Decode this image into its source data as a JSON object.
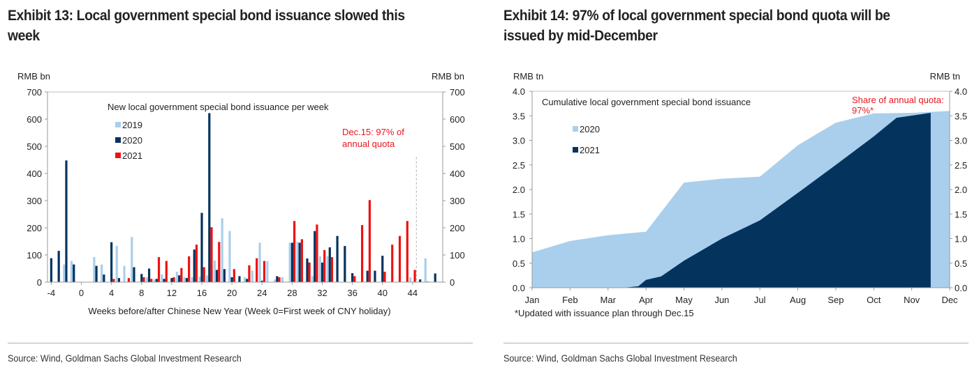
{
  "exhibit13": {
    "title": "Exhibit 13: Local government special bond issuance slowed this week",
    "title_line1": "Exhibit 13: Local government special bond issuance slowed this",
    "title_line2": "week",
    "source": "Source: Wind, Goldman Sachs Global Investment Research"
  },
  "exhibit14": {
    "title": "Exhibit 14: 97% of local government special bond quota will be issued by mid-December",
    "title_line1": "Exhibit 14: 97% of local government special bond quota will be",
    "title_line2": "issued by mid-December",
    "source": "Source: Wind, Goldman Sachs Global Investment Research"
  },
  "chart_data": [
    {
      "type": "bar",
      "title": "New local government special bond issuance per week",
      "xlabel": "Weeks before/after Chinese New Year (Week 0=First week of CNY holiday)",
      "ylabel_left": "RMB bn",
      "ylabel_right": "RMB bn",
      "ylim": [
        0,
        700
      ],
      "yticks": [
        0,
        100,
        200,
        300,
        400,
        500,
        600,
        700
      ],
      "xticks": [
        -4,
        0,
        4,
        8,
        12,
        16,
        20,
        24,
        28,
        32,
        36,
        40,
        44
      ],
      "xlim": [
        -4.5,
        48
      ],
      "legend_position": "top-left",
      "annotation": {
        "text_line1": "Dec.15: 97% of",
        "text_line2": "annual quota",
        "color": "#e8141c",
        "week": 44.5
      },
      "colors": {
        "2019": "#a9cfec",
        "2020": "#04335e",
        "2021": "#ee1111"
      },
      "x": [
        -4,
        -3,
        -2,
        -1,
        0,
        1,
        2,
        3,
        4,
        5,
        6,
        7,
        8,
        9,
        10,
        11,
        12,
        13,
        14,
        15,
        16,
        17,
        18,
        19,
        20,
        21,
        22,
        23,
        24,
        25,
        26,
        27,
        28,
        29,
        30,
        31,
        32,
        33,
        34,
        35,
        36,
        37,
        38,
        39,
        40,
        41,
        42,
        43,
        44,
        45,
        46,
        47
      ],
      "series": [
        {
          "name": "2019",
          "values": [
            0,
            0,
            65,
            78,
            0,
            0,
            92,
            65,
            0,
            133,
            60,
            166,
            0,
            18,
            10,
            28,
            0,
            38,
            18,
            18,
            20,
            25,
            80,
            235,
            188,
            0,
            18,
            42,
            145,
            78,
            10,
            18,
            145,
            148,
            0,
            22,
            95,
            96,
            0,
            0,
            0,
            0,
            0,
            0,
            0,
            0,
            0,
            0,
            18,
            0,
            88,
            0
          ]
        },
        {
          "name": "2020",
          "values": [
            88,
            115,
            448,
            65,
            0,
            0,
            60,
            28,
            147,
            15,
            0,
            55,
            30,
            50,
            12,
            12,
            15,
            25,
            15,
            120,
            255,
            622,
            45,
            48,
            18,
            22,
            12,
            0,
            5,
            0,
            22,
            0,
            145,
            145,
            87,
            188,
            72,
            128,
            170,
            133,
            33,
            0,
            42,
            42,
            97,
            0,
            0,
            0,
            0,
            10,
            2,
            32
          ]
        },
        {
          "name": "2021",
          "values": [
            0,
            0,
            0,
            0,
            0,
            0,
            0,
            0,
            12,
            0,
            15,
            0,
            18,
            12,
            92,
            78,
            18,
            52,
            95,
            138,
            55,
            202,
            148,
            0,
            48,
            0,
            62,
            88,
            78,
            0,
            18,
            0,
            225,
            158,
            72,
            212,
            118,
            92,
            0,
            0,
            22,
            210,
            302,
            0,
            38,
            138,
            170,
            225,
            45,
            0,
            0,
            0
          ]
        }
      ]
    },
    {
      "type": "area",
      "title": "Cumulative local government special bond issuance",
      "ylabel_left": "RMB tn",
      "ylabel_right": "RMB tn",
      "ylim": [
        0,
        4.0
      ],
      "yticks": [
        "0.0",
        "0.5",
        "1.0",
        "1.5",
        "2.0",
        "2.5",
        "3.0",
        "3.5",
        "4.0"
      ],
      "categories": [
        "Jan",
        "Feb",
        "Mar",
        "Apr",
        "May",
        "Jun",
        "Jul",
        "Aug",
        "Sep",
        "Oct",
        "Nov",
        "Dec"
      ],
      "legend_position": "top-left",
      "annotation": {
        "text_line1": "Share of annual quota:",
        "text_line2": "97%*",
        "color": "#e8141c"
      },
      "footnote": "*Updated with issuance plan through Dec.15",
      "colors": {
        "2020": "#a9cfec",
        "2021": "#04335e"
      },
      "series": [
        {
          "name": "2020",
          "x": [
            0,
            1,
            2,
            3,
            4,
            5,
            6,
            7,
            8,
            9,
            10,
            11
          ],
          "values": [
            0.72,
            0.95,
            1.07,
            1.14,
            2.14,
            2.22,
            2.26,
            2.9,
            3.36,
            3.55,
            3.56,
            3.6
          ]
        },
        {
          "name": "2021",
          "x": [
            0,
            1,
            2,
            2.4,
            2.8,
            3,
            3.4,
            4,
            5,
            6,
            7,
            8,
            9,
            9.6,
            10.5
          ],
          "values": [
            0,
            0,
            0,
            0,
            0.03,
            0.16,
            0.23,
            0.55,
            1.0,
            1.37,
            1.93,
            2.5,
            3.08,
            3.46,
            3.56
          ]
        }
      ]
    }
  ]
}
